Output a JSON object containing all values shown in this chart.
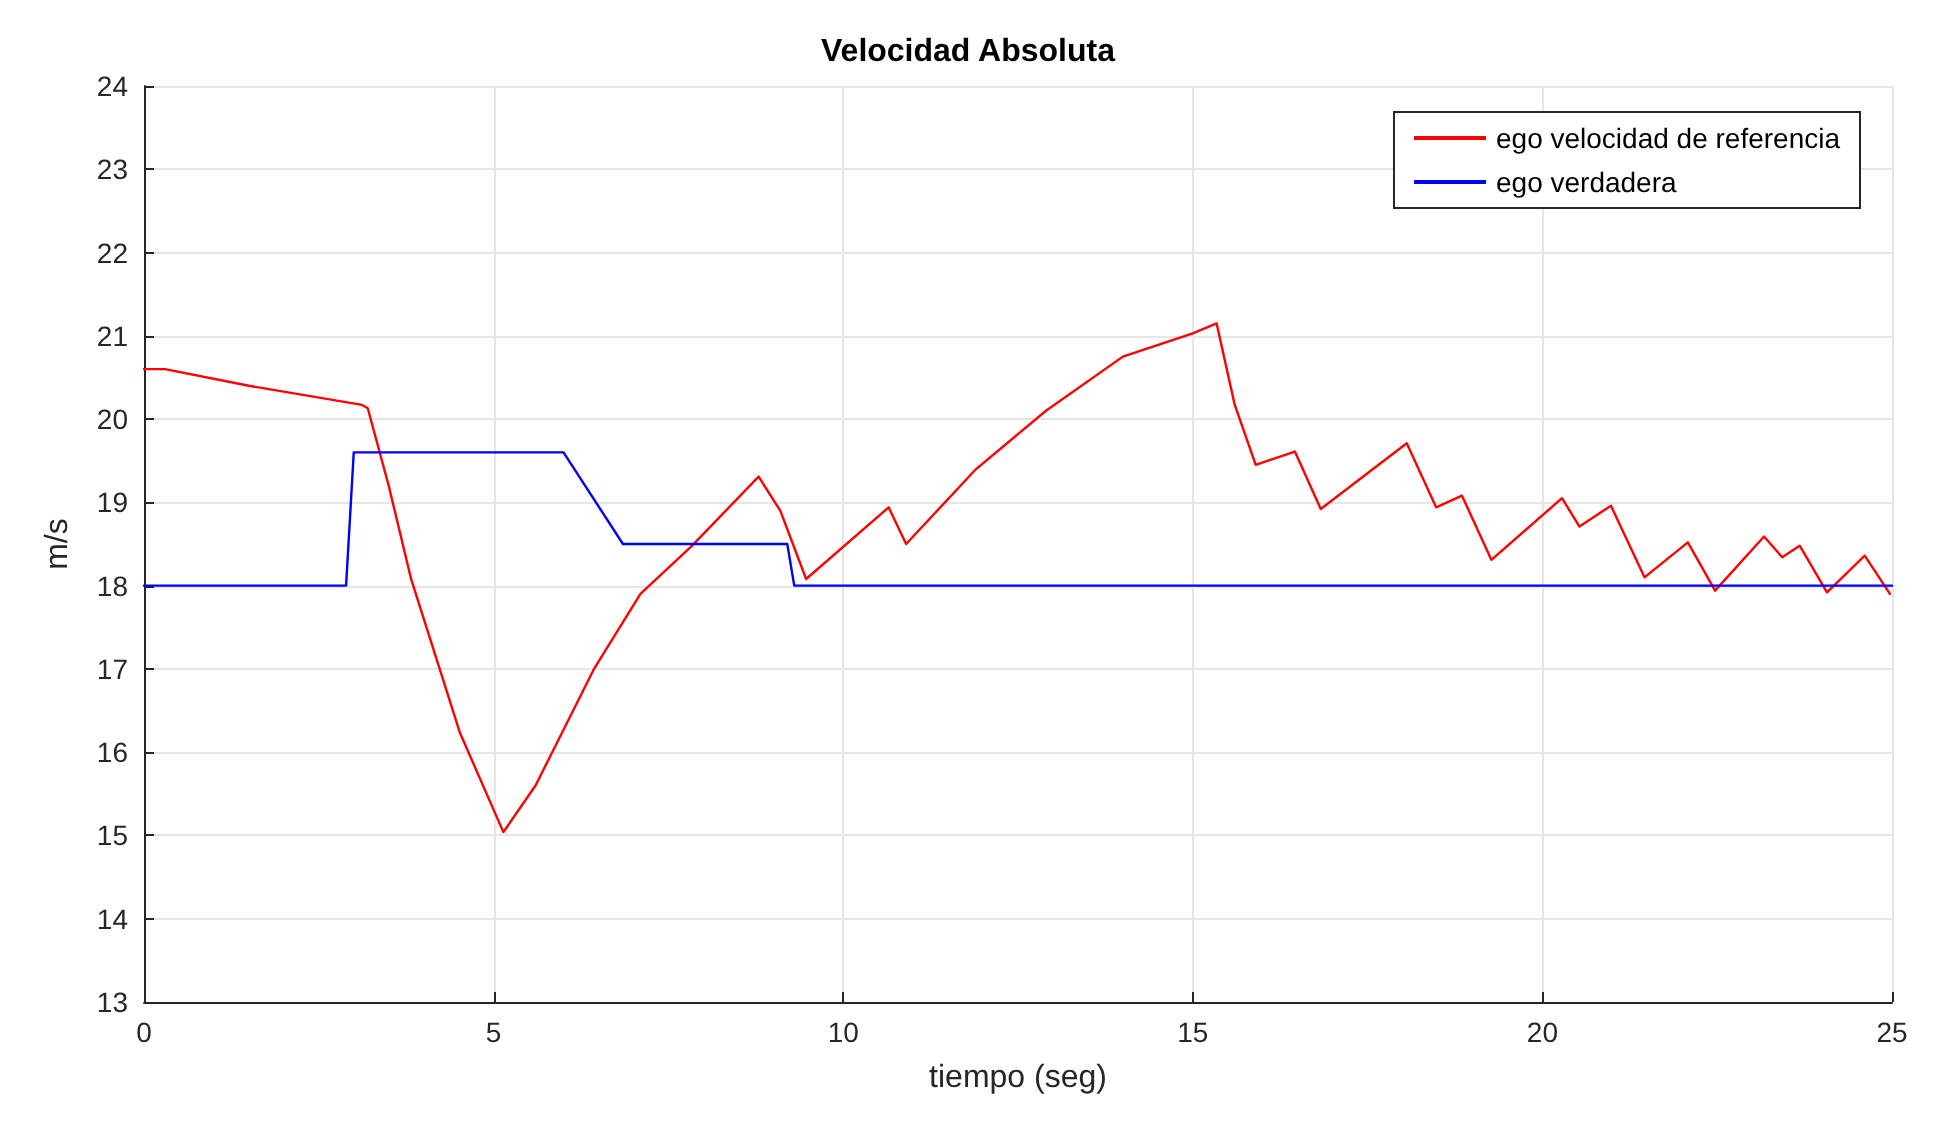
{
  "chart_data": {
    "type": "line",
    "title": "Velocidad Absoluta",
    "xlabel": "tiempo (seg)",
    "ylabel": "m/s",
    "xlim": [
      0,
      25
    ],
    "xticks": [
      0,
      5,
      10,
      15,
      20,
      25
    ],
    "ylim": [
      13,
      24
    ],
    "yticks": [
      13,
      14,
      15,
      16,
      17,
      18,
      19,
      20,
      21,
      22,
      23,
      24
    ],
    "grid": true,
    "legend": "top right",
    "marker": "none",
    "line_style": "solid",
    "series": [
      {
        "name": "ego velocidad de referencia",
        "color": "#ff0000",
        "x": [
          0,
          0.3,
          1.5,
          3.12,
          3.2,
          3.5,
          3.82,
          4.52,
          5.14,
          5.6,
          6.43,
          7.1,
          7.84,
          8.79,
          9.1,
          9.47,
          10.65,
          10.9,
          11.9,
          12.9,
          14,
          15,
          15.34,
          15.6,
          15.9,
          16.46,
          16.83,
          18.06,
          18.48,
          18.85,
          19.27,
          20.28,
          20.53,
          20.98,
          21.46,
          22.08,
          22.47,
          23.17,
          23.43,
          23.68,
          24.07,
          24.61,
          24.97
        ],
        "values": [
          20.6,
          20.6,
          20.4,
          20.17,
          20.13,
          19.2,
          18.08,
          16.23,
          15.04,
          15.6,
          16.99,
          17.9,
          18.48,
          19.31,
          18.9,
          18.08,
          18.94,
          18.5,
          19.4,
          20.1,
          20.75,
          21.03,
          21.15,
          20.17,
          19.45,
          19.61,
          18.92,
          19.71,
          18.94,
          19.08,
          18.31,
          19.05,
          18.71,
          18.96,
          18.1,
          18.52,
          17.94,
          18.59,
          18.34,
          18.48,
          17.92,
          18.36,
          17.9
        ]
      },
      {
        "name": "ego verdadera",
        "color": "#0000ff",
        "x": [
          0,
          2.89,
          3.0,
          6.0,
          6.85,
          9.2,
          9.3,
          25
        ],
        "values": [
          18,
          18,
          19.6,
          19.6,
          18.5,
          18.5,
          18,
          18
        ]
      }
    ]
  }
}
